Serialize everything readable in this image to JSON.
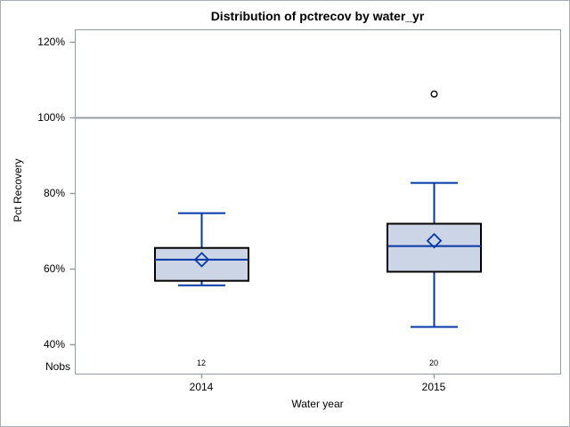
{
  "window": {
    "background": "#ffffff",
    "border_color": "#a9aeb4"
  },
  "chart_data": {
    "type": "boxplot",
    "title": "Distribution of pctrecov by water_yr",
    "xlabel": "Water year",
    "ylabel": "Pct Recovery",
    "yticks": [
      120,
      100,
      80,
      60,
      40
    ],
    "ytick_labels": [
      "120%",
      "100%",
      "80%",
      "60%",
      "40%"
    ],
    "ylim": [
      32,
      124
    ],
    "refline": 100,
    "grid": "off",
    "nobs_label": "Nobs",
    "groups": [
      {
        "label": "2014",
        "nobs": "12",
        "low": 55.7,
        "q1": 56.9,
        "median": 62.5,
        "mean": 62.5,
        "q3": 65.6,
        "high": 74.8,
        "outliers": []
      },
      {
        "label": "2015",
        "nobs": "20",
        "low": 44.7,
        "q1": 59.3,
        "median": 66.1,
        "mean": 67.5,
        "q3": 72.0,
        "high": 82.8,
        "outliers": [
          106.3
        ]
      }
    ],
    "colors": {
      "box_fill": "#ccd5e6",
      "box_border": "#000000",
      "line_blue": "#0038a6",
      "frame_gray": "#949ba1",
      "refline_gray": "#9aa0a6",
      "outlier": "#111111"
    }
  }
}
